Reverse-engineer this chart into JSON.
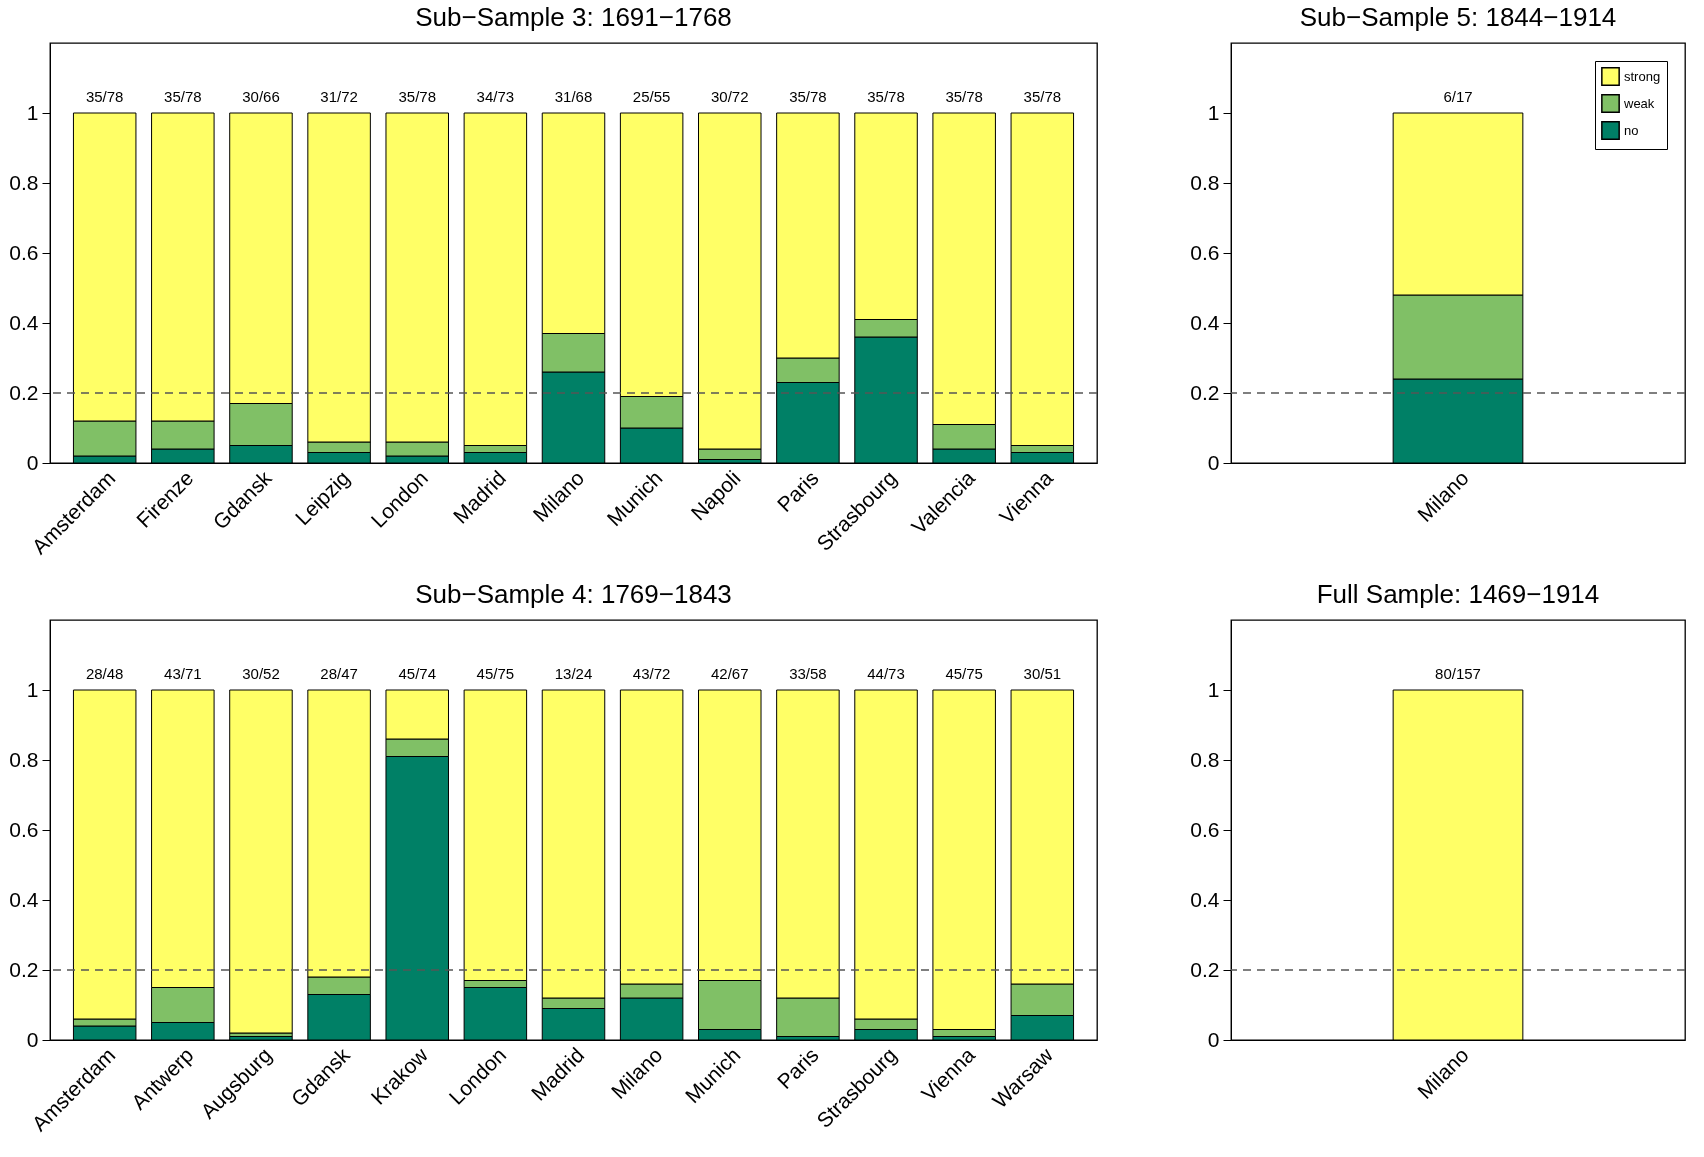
{
  "chart_data": [
    {
      "type": "bar",
      "title": "Sub−Sample 3: 1691−1768",
      "stacked": true,
      "categories": [
        "Amsterdam",
        "Firenze",
        "Gdansk",
        "Leipzig",
        "London",
        "Madrid",
        "Milano",
        "Munich",
        "Napoli",
        "Paris",
        "Strasbourg",
        "Valencia",
        "Vienna"
      ],
      "series": [
        {
          "color": "#008066",
          "values": [
            0.02,
            0.04,
            0.05,
            0.03,
            0.02,
            0.03,
            0.26,
            0.1,
            0.01,
            0.23,
            0.36,
            0.04,
            0.03
          ]
        },
        {
          "color": "#80c066",
          "values": [
            0.1,
            0.08,
            0.12,
            0.03,
            0.04,
            0.02,
            0.11,
            0.09,
            0.03,
            0.07,
            0.05,
            0.07,
            0.02
          ]
        },
        {
          "color": "#ffff66",
          "values": [
            0.88,
            0.88,
            0.83,
            0.94,
            0.94,
            0.95,
            0.63,
            0.81,
            0.96,
            0.7,
            0.59,
            0.89,
            0.95
          ]
        }
      ],
      "totals": [
        "35/78",
        "35/78",
        "30/66",
        "31/72",
        "35/78",
        "34/73",
        "31/68",
        "25/55",
        "30/72",
        "35/78",
        "35/78",
        "35/78",
        "35/78"
      ],
      "ylim": [
        0,
        1.2
      ],
      "yticks": [
        0,
        0.2,
        0.4,
        0.6,
        0.8,
        1
      ],
      "ref_lines": [
        {
          "axis": "y",
          "value": 0.2,
          "color": "#555555",
          "line_style": "dashed"
        }
      ]
    },
    {
      "type": "bar",
      "title": "Sub−Sample 5: 1844−1914",
      "stacked": true,
      "categories": [
        "Milano"
      ],
      "series": [
        {
          "name": "no",
          "color": "#008066",
          "values": [
            0.24
          ]
        },
        {
          "name": "weak",
          "color": "#80c066",
          "values": [
            0.24
          ]
        },
        {
          "name": "strong",
          "color": "#ffff66",
          "values": [
            0.52
          ]
        }
      ],
      "totals": [
        "6/17"
      ],
      "legend": "top right",
      "ylim": [
        0,
        1.2
      ],
      "yticks": [
        0,
        0.2,
        0.4,
        0.6,
        0.8,
        1
      ],
      "ref_lines": [
        {
          "axis": "y",
          "value": 0.2,
          "color": "#555555",
          "line_style": "dashed"
        }
      ]
    },
    {
      "type": "bar",
      "title": "Sub−Sample 4: 1769−1843",
      "stacked": true,
      "categories": [
        "Amsterdam",
        "Antwerp",
        "Augsburg",
        "Gdansk",
        "Krakow",
        "London",
        "Madrid",
        "Milano",
        "Munich",
        "Paris",
        "Strasbourg",
        "Vienna",
        "Warsaw"
      ],
      "series": [
        {
          "color": "#008066",
          "values": [
            0.04,
            0.05,
            0.01,
            0.13,
            0.81,
            0.15,
            0.09,
            0.12,
            0.03,
            0.01,
            0.03,
            0.01,
            0.07
          ]
        },
        {
          "color": "#80c066",
          "values": [
            0.02,
            0.1,
            0.01,
            0.05,
            0.05,
            0.02,
            0.03,
            0.04,
            0.14,
            0.11,
            0.03,
            0.02,
            0.09
          ]
        },
        {
          "color": "#ffff66",
          "values": [
            0.94,
            0.85,
            0.98,
            0.82,
            0.14,
            0.83,
            0.88,
            0.84,
            0.83,
            0.88,
            0.94,
            0.97,
            0.84
          ]
        }
      ],
      "totals": [
        "28/48",
        "43/71",
        "30/52",
        "28/47",
        "45/74",
        "45/75",
        "13/24",
        "43/72",
        "42/67",
        "33/58",
        "44/73",
        "45/75",
        "30/51"
      ],
      "ylim": [
        0,
        1.2
      ],
      "yticks": [
        0,
        0.2,
        0.4,
        0.6,
        0.8,
        1
      ],
      "ref_lines": [
        {
          "axis": "y",
          "value": 0.2,
          "color": "#555555",
          "line_style": "dashed"
        }
      ]
    },
    {
      "type": "bar",
      "title": "Full Sample: 1469−1914",
      "stacked": true,
      "categories": [
        "Milano"
      ],
      "series": [
        {
          "color": "#008066",
          "values": [
            0
          ]
        },
        {
          "color": "#80c066",
          "values": [
            0
          ]
        },
        {
          "color": "#ffff66",
          "values": [
            1
          ]
        }
      ],
      "totals": [
        "80/157"
      ],
      "ylim": [
        0,
        1.2
      ],
      "yticks": [
        0,
        0.2,
        0.4,
        0.6,
        0.8,
        1
      ],
      "ref_lines": [
        {
          "axis": "y",
          "value": 0.2,
          "color": "#555555",
          "line_style": "dashed"
        }
      ]
    }
  ]
}
